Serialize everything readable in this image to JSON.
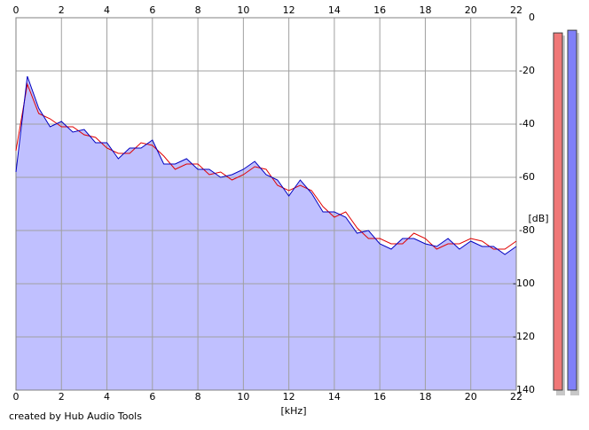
{
  "chart_data": {
    "type": "line",
    "xlabel": "[kHz]",
    "ylabel": "[dB]",
    "footer": "created by Hub Audio Tools",
    "x": [
      0,
      0.5,
      1,
      1.5,
      2,
      2.5,
      3,
      3.5,
      4,
      4.5,
      5,
      5.5,
      6,
      6.5,
      7,
      7.5,
      8,
      8.5,
      9,
      9.5,
      10,
      10.5,
      11,
      11.5,
      12,
      12.5,
      13,
      13.5,
      14,
      14.5,
      15,
      15.5,
      16,
      16.5,
      17,
      17.5,
      18,
      18.5,
      19,
      19.5,
      20,
      20.5,
      21,
      21.5,
      22
    ],
    "series": [
      {
        "color": "#e00000",
        "values": [
          -50,
          -25,
          -36,
          -38,
          -41,
          -41,
          -44,
          -45,
          -49,
          -51,
          -51,
          -47,
          -48,
          -52,
          -57,
          -55,
          -55,
          -59,
          -58,
          -61,
          -59,
          -56,
          -57,
          -63,
          -65,
          -63,
          -65,
          -71,
          -75,
          -73,
          -79,
          -83,
          -83,
          -85,
          -85,
          -81,
          -83,
          -87,
          -85,
          -85,
          -83,
          -84,
          -87,
          -87,
          -84
        ]
      },
      {
        "color": "#0000c0",
        "fill": "#c0c0ff",
        "values": [
          -58,
          -22,
          -34,
          -41,
          -39,
          -43,
          -42,
          -47,
          -47,
          -53,
          -49,
          -49,
          -46,
          -55,
          -55,
          -53,
          -57,
          -57,
          -60,
          -59,
          -57,
          -54,
          -59,
          -61,
          -67,
          -61,
          -66,
          -73,
          -73,
          -75,
          -81,
          -80,
          -85,
          -87,
          -83,
          -83,
          -85,
          -86,
          -83,
          -87,
          -84,
          -86,
          -86,
          -89,
          -86
        ]
      }
    ],
    "xlim": [
      0,
      22
    ],
    "xticks": [
      0,
      2,
      4,
      6,
      8,
      10,
      12,
      14,
      16,
      18,
      20,
      22
    ],
    "ylim": [
      -140,
      0
    ],
    "yticks": [
      0,
      -20,
      -40,
      -60,
      -80,
      -100,
      -120,
      -140
    ],
    "grid": true,
    "level_meters": [
      {
        "color": "#f07878",
        "value": -5.7
      },
      {
        "color": "#8080f8",
        "value": -4.7
      }
    ]
  }
}
